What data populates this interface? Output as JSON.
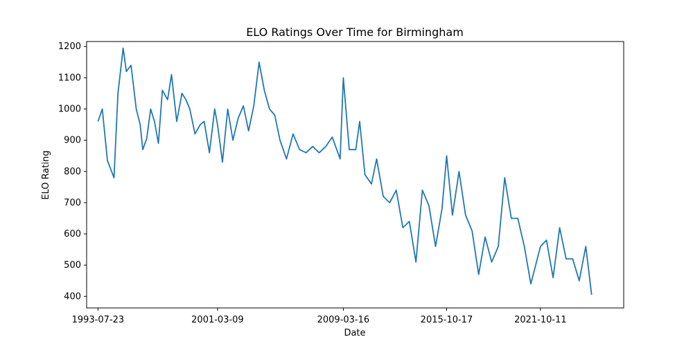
{
  "chart_data": {
    "type": "line",
    "title": "ELO Ratings Over Time for Birmingham",
    "xlabel": "Date",
    "ylabel": "ELO Rating",
    "x_ticks": [
      "1993-07-23",
      "2001-03-09",
      "2009-03-16",
      "2015-10-17",
      "2021-10-11"
    ],
    "x_range": [
      "1992-11-01",
      "2027-02-01"
    ],
    "y_ticks": [
      400,
      500,
      600,
      700,
      800,
      900,
      1000,
      1100,
      1200
    ],
    "ylim": [
      363,
      1216
    ],
    "grid": false,
    "legend": "none",
    "series": [
      {
        "color": "#1f77b4",
        "x": [
          "1993-07-23",
          "1993-11-01",
          "1994-03-01",
          "1994-08-01",
          "1994-11-01",
          "1995-03-01",
          "1995-05-15",
          "1995-09-01",
          "1996-01-01",
          "1996-04-01",
          "1996-06-01",
          "1996-09-01",
          "1996-12-01",
          "1997-03-01",
          "1997-06-01",
          "1997-09-01",
          "1998-01-01",
          "1998-04-01",
          "1998-08-01",
          "1998-12-01",
          "1999-03-01",
          "1999-06-01",
          "1999-10-01",
          "2000-02-01",
          "2000-05-01",
          "2000-09-01",
          "2001-01-01",
          "2001-03-09",
          "2001-07-01",
          "2001-11-01",
          "2002-03-01",
          "2002-07-01",
          "2002-11-01",
          "2003-03-01",
          "2003-07-01",
          "2003-11-01",
          "2004-03-01",
          "2004-07-01",
          "2004-11-01",
          "2005-03-01",
          "2005-08-01",
          "2006-01-01",
          "2006-06-01",
          "2006-11-01",
          "2007-04-01",
          "2007-09-01",
          "2008-02-01",
          "2008-07-01",
          "2009-01-01",
          "2009-03-16",
          "2009-08-01",
          "2010-01-01",
          "2010-04-01",
          "2010-08-01",
          "2011-01-01",
          "2011-05-01",
          "2011-10-01",
          "2012-03-01",
          "2012-08-01",
          "2013-01-01",
          "2013-06-01",
          "2013-11-01",
          "2014-04-01",
          "2014-09-01",
          "2015-02-01",
          "2015-07-01",
          "2015-10-17",
          "2016-03-01",
          "2016-08-01",
          "2017-01-01",
          "2017-06-01",
          "2017-11-01",
          "2018-04-01",
          "2018-09-01",
          "2019-02-01",
          "2019-07-01",
          "2019-12-01",
          "2020-05-01",
          "2020-10-01",
          "2021-03-01",
          "2021-10-11",
          "2022-03-01",
          "2022-08-01",
          "2023-01-01",
          "2023-06-01",
          "2023-11-01",
          "2024-04-01",
          "2024-09-01",
          "2025-01-15"
        ],
        "y": [
          960,
          1000,
          835,
          780,
          1050,
          1195,
          1120,
          1140,
          1000,
          950,
          870,
          905,
          1000,
          960,
          890,
          1060,
          1030,
          1110,
          960,
          1050,
          1030,
          1000,
          920,
          950,
          960,
          860,
          1000,
          950,
          830,
          1000,
          900,
          970,
          1010,
          930,
          1010,
          1150,
          1060,
          1000,
          980,
          900,
          840,
          920,
          870,
          860,
          880,
          860,
          880,
          910,
          840,
          1100,
          870,
          870,
          960,
          790,
          760,
          840,
          720,
          700,
          740,
          620,
          640,
          510,
          740,
          690,
          560,
          680,
          850,
          660,
          800,
          660,
          610,
          470,
          590,
          510,
          560,
          780,
          650,
          650,
          560,
          440,
          560,
          580,
          460,
          620,
          520,
          520,
          450,
          560,
          405
        ]
      }
    ]
  }
}
